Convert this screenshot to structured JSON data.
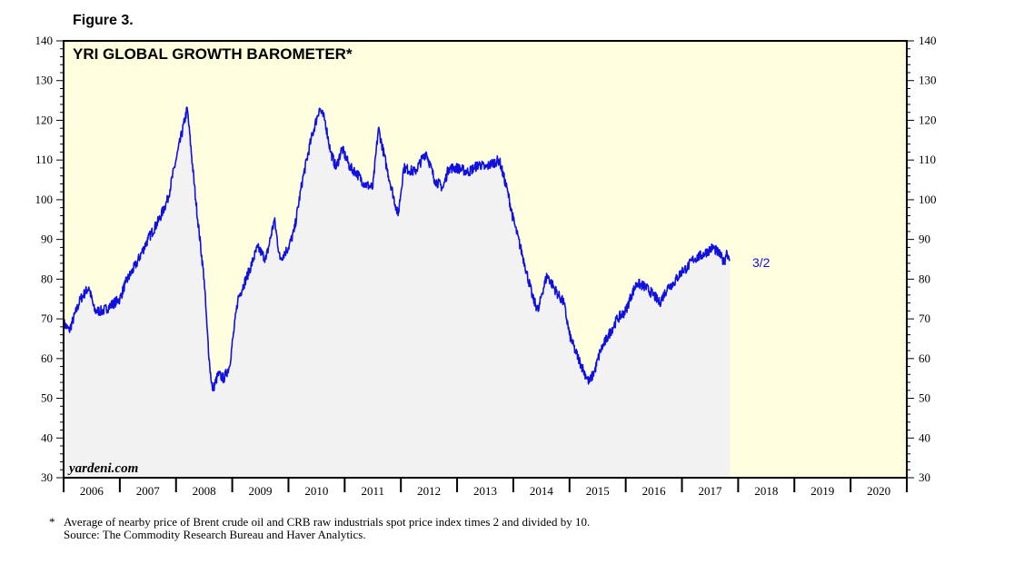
{
  "figure_label": "Figure 3.",
  "footnote": {
    "marker": "*",
    "text": "Average of nearby price of Brent crude oil and CRB raw industrials spot price index times 2 and divided by 10.",
    "source": "Source: The Commodity Research Bureau and Haver Analytics."
  },
  "chart_data": {
    "type": "line",
    "title": "YRI GLOBAL GROWTH BAROMETER*",
    "watermark": "yardeni.com",
    "end_label": "3/2",
    "xlim": [
      2006,
      2021
    ],
    "ylim": [
      30,
      140
    ],
    "yticks": [
      30,
      40,
      50,
      60,
      70,
      80,
      90,
      100,
      110,
      120,
      130,
      140
    ],
    "year_labels": [
      "2006",
      "2007",
      "2008",
      "2009",
      "2010",
      "2011",
      "2012",
      "2013",
      "2014",
      "2015",
      "2016",
      "2017",
      "2018",
      "2019",
      "2020"
    ],
    "grid": false,
    "colors": {
      "line": "#1010e0",
      "area": "#f2f2f2",
      "background": "#ffffe0",
      "axes": "#000000"
    },
    "series": [
      {
        "x": [
          2006.0,
          2006.1,
          2006.3,
          2006.45,
          2006.55,
          2006.7,
          2006.8,
          2007.0,
          2007.1,
          2007.3,
          2007.5,
          2007.7,
          2007.85,
          2008.0,
          2008.2,
          2008.35,
          2008.5,
          2008.55,
          2008.6,
          2008.65,
          2008.75,
          2008.85,
          2008.95,
          2009.1,
          2009.3,
          2009.45,
          2009.6,
          2009.75,
          2009.85,
          2010.0,
          2010.1,
          2010.25,
          2010.4,
          2010.55,
          2010.65,
          2010.75,
          2010.85,
          2010.95,
          2011.1,
          2011.2,
          2011.35,
          2011.5,
          2011.6,
          2011.75,
          2011.95,
          2012.05,
          2012.25,
          2012.45,
          2012.6,
          2012.75,
          2012.85,
          2013.0,
          2013.2,
          2013.3,
          2013.4,
          2013.5,
          2013.6,
          2013.75,
          2013.9,
          2014.0,
          2014.2,
          2014.35,
          2014.45,
          2014.5,
          2014.6,
          2014.8,
          2014.9,
          2015.0,
          2015.1,
          2015.25,
          2015.35,
          2015.45,
          2015.55,
          2015.7,
          2015.85,
          2016.0,
          2016.1,
          2016.2,
          2016.35,
          2016.5,
          2016.6,
          2016.75,
          2016.85,
          2017.0,
          2017.1,
          2017.2,
          2017.35,
          2017.45,
          2017.55,
          2017.62,
          2017.68,
          2017.72,
          2017.75,
          2017.78,
          2017.8,
          2017.82,
          2017.85
        ],
        "y": [
          69,
          67,
          75,
          78,
          72,
          72,
          73,
          75,
          79,
          84,
          90,
          95,
          100,
          110,
          123,
          100,
          80,
          68,
          58,
          52,
          56,
          55,
          58,
          75,
          82,
          88,
          85,
          95,
          85,
          88,
          92,
          105,
          115,
          123,
          120,
          112,
          108,
          113,
          108,
          107,
          104,
          103,
          118,
          108,
          96,
          108,
          107,
          112,
          105,
          103,
          108,
          108,
          107,
          108,
          109,
          108,
          109,
          110,
          102,
          95,
          84,
          75,
          72,
          76,
          81,
          76,
          74,
          66,
          62,
          57,
          54,
          57,
          62,
          66,
          70,
          72,
          76,
          79,
          78,
          76,
          74,
          78,
          79,
          82,
          83,
          85,
          86,
          87,
          88,
          87,
          86,
          85,
          84,
          86,
          87,
          86,
          85
        ]
      }
    ]
  }
}
